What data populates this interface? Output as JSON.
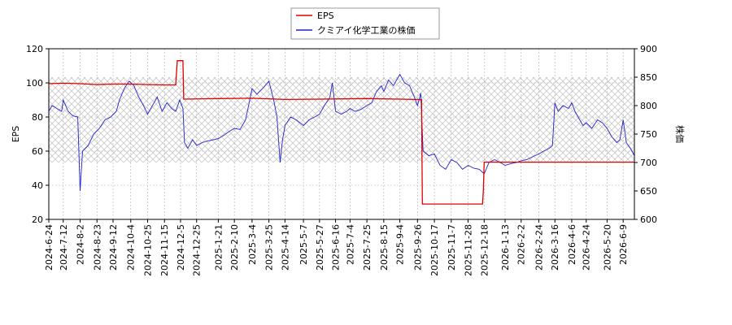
{
  "chart_data": {
    "type": "line",
    "legend": {
      "placement": "top-center",
      "items": [
        {
          "label": "EPS",
          "color": "#dd0000"
        },
        {
          "label": "クミアイ化学工業の株価",
          "color": "#2222cc"
        }
      ]
    },
    "left_axis": {
      "label": "EPS",
      "ylim": [
        20,
        120
      ],
      "ticks": [
        "20",
        "40",
        "60",
        "80",
        "100",
        "120"
      ]
    },
    "right_axis": {
      "label": "株価",
      "ylim": [
        600,
        900
      ],
      "ticks": [
        "600",
        "650",
        "700",
        "750",
        "800",
        "850",
        "900"
      ]
    },
    "x_ticks": [
      "2024-6-24",
      "2024-7-12",
      "2024-8-2",
      "2024-8-23",
      "2024-9-12",
      "2024-10-4",
      "2024-10-25",
      "2024-11-15",
      "2024-12-5",
      "2024-12-25",
      "2025-1-21",
      "2025-2-10",
      "2025-3-4",
      "2025-3-25",
      "2025-4-14",
      "2025-5-7",
      "2025-5-27",
      "2025-6-16",
      "2025-7-4",
      "2025-7-25",
      "2025-8-15",
      "2025-9-4",
      "2025-9-26",
      "2025-10-17",
      "2025-11-7",
      "2025-11-28",
      "2025-12-18",
      "2026-1-13",
      "2026-2-2",
      "2026-2-24",
      "2026-3-16",
      "2026-4-6",
      "2026-4-24",
      "2026-5-20",
      "2026-6-9"
    ],
    "x_range": [
      "2024-6-24",
      "2026-6-23"
    ],
    "grid": true,
    "shaded_band": {
      "axis": "right",
      "range": [
        700,
        850
      ],
      "pattern": "crosshatch"
    },
    "series": [
      {
        "name": "EPS",
        "axis": "left",
        "color": "#dd0000",
        "step": true,
        "points": [
          [
            "2024-6-24",
            99.5
          ],
          [
            "2024-7-12",
            99.8
          ],
          [
            "2024-8-2",
            99.5
          ],
          [
            "2024-8-23",
            99.0
          ],
          [
            "2024-9-12",
            99.3
          ],
          [
            "2024-10-4",
            99.3
          ],
          [
            "2024-10-25",
            99.0
          ],
          [
            "2024-11-15",
            98.8
          ],
          [
            "2024-11-29",
            98.8
          ],
          [
            "2024-12-1",
            113.0
          ],
          [
            "2024-12-8",
            113.0
          ],
          [
            "2024-12-9",
            90.5
          ],
          [
            "2025-1-21",
            90.8
          ],
          [
            "2025-3-4",
            91.0
          ],
          [
            "2025-4-14",
            90.3
          ],
          [
            "2025-5-27",
            90.5
          ],
          [
            "2025-7-25",
            90.8
          ],
          [
            "2025-9-4",
            90.5
          ],
          [
            "2025-10-1",
            90.2
          ],
          [
            "2025-10-2",
            29.0
          ],
          [
            "2025-12-16",
            29.0
          ],
          [
            "2025-12-17",
            37.0
          ],
          [
            "2025-12-18",
            53.5
          ],
          [
            "2026-6-23",
            53.5
          ]
        ]
      },
      {
        "name": "クミアイ化学工業の株価",
        "axis": "right",
        "color": "#2222cc",
        "points": [
          [
            "2024-6-24",
            790
          ],
          [
            "2024-6-28",
            800
          ],
          [
            "2024-7-4",
            795
          ],
          [
            "2024-7-10",
            790
          ],
          [
            "2024-7-12",
            810
          ],
          [
            "2024-7-18",
            790
          ],
          [
            "2024-7-24",
            782
          ],
          [
            "2024-7-30",
            780
          ],
          [
            "2024-8-2",
            650
          ],
          [
            "2024-8-5",
            720
          ],
          [
            "2024-8-12",
            730
          ],
          [
            "2024-8-19",
            750
          ],
          [
            "2024-8-26",
            760
          ],
          [
            "2024-9-2",
            775
          ],
          [
            "2024-9-9",
            780
          ],
          [
            "2024-9-16",
            790
          ],
          [
            "2024-9-20",
            810
          ],
          [
            "2024-9-26",
            830
          ],
          [
            "2024-10-2",
            843
          ],
          [
            "2024-10-8",
            835
          ],
          [
            "2024-10-14",
            815
          ],
          [
            "2024-10-20",
            800
          ],
          [
            "2024-10-25",
            785
          ],
          [
            "2024-10-31",
            800
          ],
          [
            "2024-11-6",
            815
          ],
          [
            "2024-11-12",
            790
          ],
          [
            "2024-11-18",
            805
          ],
          [
            "2024-11-24",
            795
          ],
          [
            "2024-11-29",
            790
          ],
          [
            "2024-12-4",
            810
          ],
          [
            "2024-12-8",
            795
          ],
          [
            "2024-12-10",
            735
          ],
          [
            "2024-12-14",
            725
          ],
          [
            "2024-12-20",
            740
          ],
          [
            "2024-12-25",
            730
          ],
          [
            "2025-1-1",
            735
          ],
          [
            "2025-1-8",
            738
          ],
          [
            "2025-1-15",
            740
          ],
          [
            "2025-1-21",
            742
          ],
          [
            "2025-1-28",
            748
          ],
          [
            "2025-2-4",
            755
          ],
          [
            "2025-2-10",
            760
          ],
          [
            "2025-2-17",
            758
          ],
          [
            "2025-2-24",
            775
          ],
          [
            "2025-3-4",
            830
          ],
          [
            "2025-3-10",
            820
          ],
          [
            "2025-3-17",
            830
          ],
          [
            "2025-3-25",
            843
          ],
          [
            "2025-3-31",
            810
          ],
          [
            "2025-4-4",
            780
          ],
          [
            "2025-4-8",
            700
          ],
          [
            "2025-4-11",
            740
          ],
          [
            "2025-4-14",
            765
          ],
          [
            "2025-4-21",
            780
          ],
          [
            "2025-4-28",
            775
          ],
          [
            "2025-5-7",
            765
          ],
          [
            "2025-5-14",
            775
          ],
          [
            "2025-5-21",
            780
          ],
          [
            "2025-5-27",
            785
          ],
          [
            "2025-6-2",
            800
          ],
          [
            "2025-6-9",
            815
          ],
          [
            "2025-6-12",
            840
          ],
          [
            "2025-6-16",
            790
          ],
          [
            "2025-6-23",
            785
          ],
          [
            "2025-6-30",
            790
          ],
          [
            "2025-7-4",
            795
          ],
          [
            "2025-7-10",
            790
          ],
          [
            "2025-7-17",
            793
          ],
          [
            "2025-7-25",
            800
          ],
          [
            "2025-7-31",
            805
          ],
          [
            "2025-8-6",
            825
          ],
          [
            "2025-8-12",
            835
          ],
          [
            "2025-8-15",
            825
          ],
          [
            "2025-8-21",
            845
          ],
          [
            "2025-8-27",
            835
          ],
          [
            "2025-9-4",
            855
          ],
          [
            "2025-9-10",
            840
          ],
          [
            "2025-9-16",
            835
          ],
          [
            "2025-9-22",
            815
          ],
          [
            "2025-9-26",
            800
          ],
          [
            "2025-9-30",
            822
          ],
          [
            "2025-10-3",
            720
          ],
          [
            "2025-10-10",
            712
          ],
          [
            "2025-10-17",
            715
          ],
          [
            "2025-10-24",
            695
          ],
          [
            "2025-10-31",
            688
          ],
          [
            "2025-11-7",
            705
          ],
          [
            "2025-11-14",
            700
          ],
          [
            "2025-11-21",
            688
          ],
          [
            "2025-11-28",
            695
          ],
          [
            "2025-12-5",
            690
          ],
          [
            "2025-12-12",
            688
          ],
          [
            "2025-12-18",
            680
          ],
          [
            "2025-12-24",
            700
          ],
          [
            "2025-12-31",
            705
          ],
          [
            "2026-1-7",
            700
          ],
          [
            "2026-1-13",
            695
          ],
          [
            "2026-1-20",
            698
          ],
          [
            "2026-1-27",
            700
          ],
          [
            "2026-2-2",
            703
          ],
          [
            "2026-2-9",
            705
          ],
          [
            "2026-2-16",
            710
          ],
          [
            "2026-2-24",
            715
          ],
          [
            "2026-3-2",
            720
          ],
          [
            "2026-3-9",
            725
          ],
          [
            "2026-3-13",
            730
          ],
          [
            "2026-3-16",
            805
          ],
          [
            "2026-3-20",
            790
          ],
          [
            "2026-3-26",
            800
          ],
          [
            "2026-4-2",
            795
          ],
          [
            "2026-4-6",
            805
          ],
          [
            "2026-4-10",
            790
          ],
          [
            "2026-4-16",
            775
          ],
          [
            "2026-4-20",
            765
          ],
          [
            "2026-4-24",
            770
          ],
          [
            "2026-5-1",
            760
          ],
          [
            "2026-5-8",
            775
          ],
          [
            "2026-5-14",
            770
          ],
          [
            "2026-5-20",
            760
          ],
          [
            "2026-5-26",
            745
          ],
          [
            "2026-6-1",
            735
          ],
          [
            "2026-6-5",
            740
          ],
          [
            "2026-6-9",
            775
          ],
          [
            "2026-6-13",
            735
          ],
          [
            "2026-6-18",
            725
          ],
          [
            "2026-6-23",
            712
          ]
        ]
      }
    ]
  }
}
